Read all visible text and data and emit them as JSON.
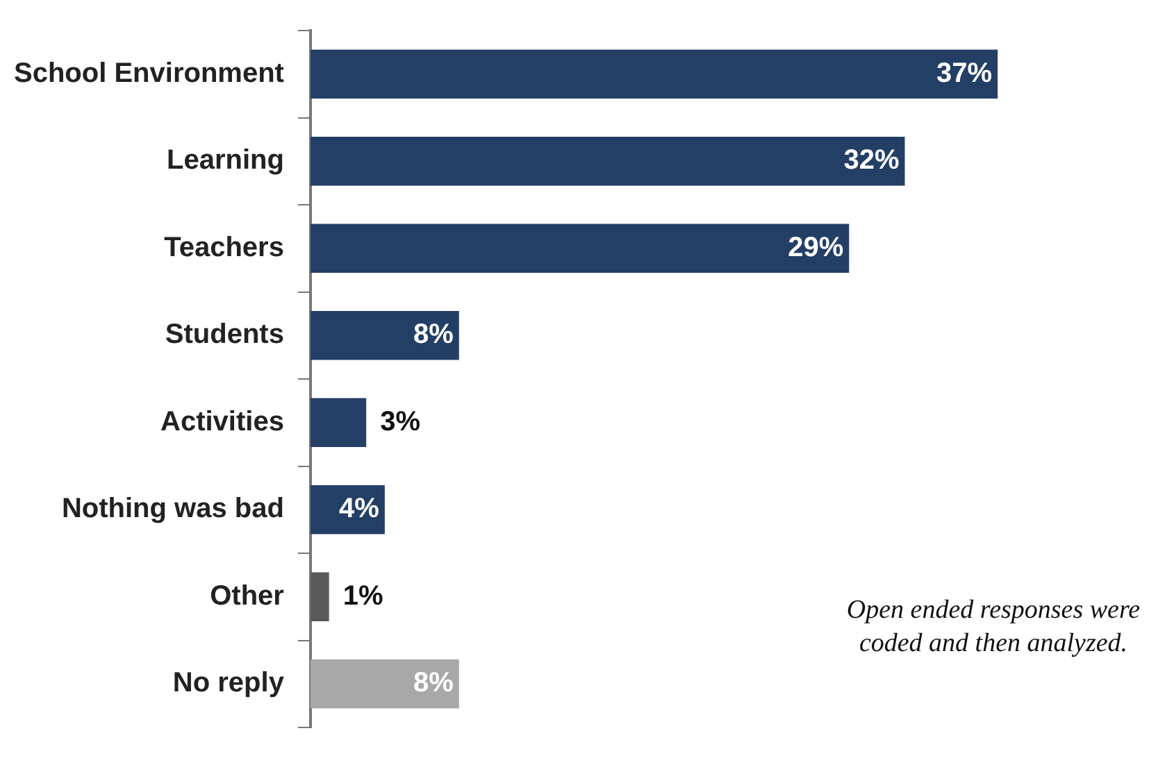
{
  "chart_data": {
    "type": "bar",
    "orientation": "horizontal",
    "categories": [
      "School Environment",
      "Learning",
      "Teachers",
      "Students",
      "Activities",
      "Nothing was bad",
      "Other",
      "No reply"
    ],
    "values": [
      37,
      32,
      29,
      8,
      3,
      4,
      1,
      8
    ],
    "colors": [
      "#243f66",
      "#243f66",
      "#243f66",
      "#243f66",
      "#243f66",
      "#243f66",
      "#5a5a5a",
      "#a8a8a8"
    ],
    "value_labels": [
      "37%",
      "32%",
      "29%",
      "8%",
      "3%",
      "4%",
      "1%",
      "8%"
    ],
    "annotations": [
      "Open ended responses were coded and then analyzed."
    ],
    "grid": false,
    "legend": false
  }
}
